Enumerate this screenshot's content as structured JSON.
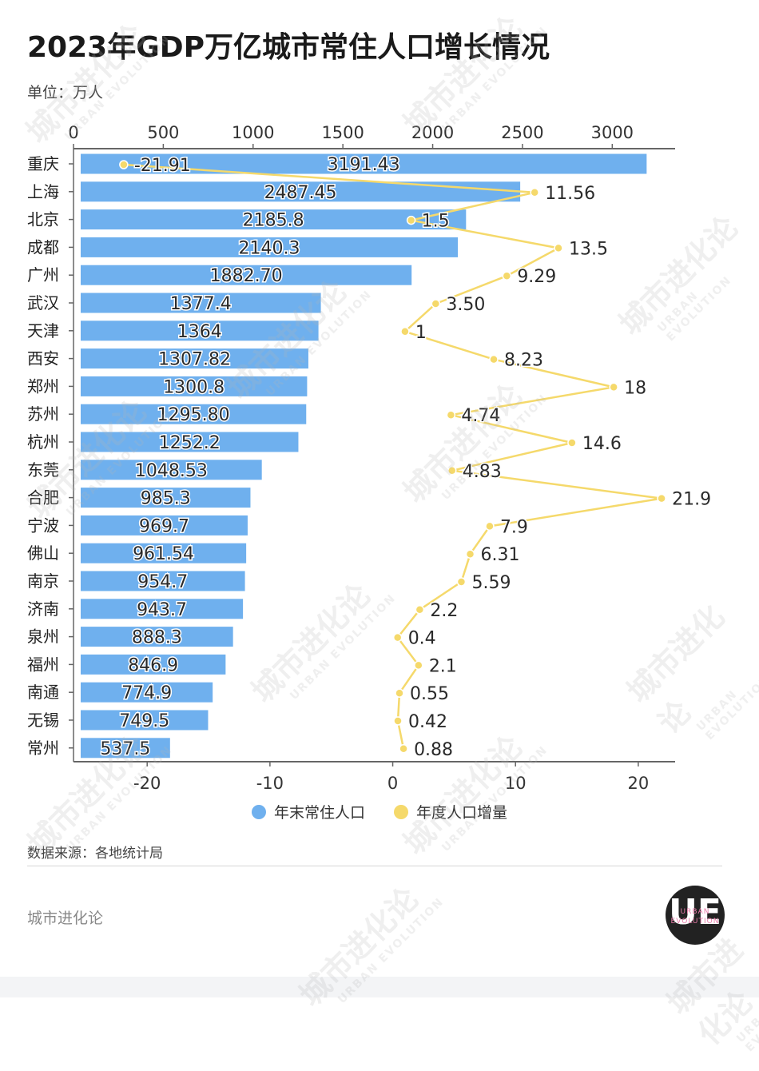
{
  "title": "2023年GDP万亿城市常住人口增长情况",
  "unit": "单位：万人",
  "source": "数据来源：各地统计局",
  "brand": "城市进化论",
  "logo": {
    "letters": "UE",
    "line1": "URBAN",
    "line2": "EVOLUTION"
  },
  "watermark": {
    "cn": "城市进化论",
    "en": "URBAN EVOLUTION"
  },
  "colors": {
    "bar": "#6fb0ee",
    "line": "#f5d96b",
    "axis": "#666666"
  },
  "legend": [
    {
      "label": "年末常住人口",
      "color": "#6fb0ee"
    },
    {
      "label": "年度人口增量",
      "color": "#f5d96b"
    }
  ],
  "chart_data": {
    "type": "bar",
    "categories": [
      "重庆",
      "上海",
      "北京",
      "成都",
      "广州",
      "武汉",
      "天津",
      "西安",
      "郑州",
      "苏州",
      "杭州",
      "东莞",
      "合肥",
      "宁波",
      "佛山",
      "南京",
      "济南",
      "泉州",
      "福州",
      "南通",
      "无锡",
      "常州"
    ],
    "series": [
      {
        "name": "年末常住人口",
        "type": "bar",
        "axis": "top",
        "values": [
          3191.43,
          2487.45,
          2185.8,
          2140.3,
          1882.7,
          1377.4,
          1364,
          1307.82,
          1300.8,
          1295.8,
          1252.2,
          1048.53,
          985.3,
          969.7,
          961.54,
          954.7,
          943.7,
          888.3,
          846.9,
          774.9,
          749.5,
          537.5
        ],
        "labels": [
          "3191.43",
          "2487.45",
          "2185.8",
          "2140.3",
          "1882.70",
          "1377.4",
          "1364",
          "1307.82",
          "1300.8",
          "1295.80",
          "1252.2",
          "1048.53",
          "985.3",
          "969.7",
          "961.54",
          "954.7",
          "943.7",
          "888.3",
          "846.9",
          "774.9",
          "749.5",
          "537.5"
        ]
      },
      {
        "name": "年度人口增量",
        "type": "line",
        "axis": "bottom",
        "values": [
          -21.91,
          11.56,
          1.5,
          13.5,
          9.29,
          3.5,
          1,
          8.23,
          18,
          4.74,
          14.6,
          4.83,
          21.9,
          7.9,
          6.31,
          5.59,
          2.2,
          0.4,
          2.1,
          0.55,
          0.42,
          0.88
        ],
        "labels": [
          "-21.91",
          "11.56",
          "1.5",
          "13.5",
          "9.29",
          "3.50",
          "1",
          "8.23",
          "18",
          "4.74",
          "14.6",
          "4.83",
          "21.9",
          "7.9",
          "6.31",
          "5.59",
          "2.2",
          "0.4",
          "2.1",
          "0.55",
          "0.42",
          "0.88"
        ]
      }
    ],
    "top_axis": {
      "min": 0,
      "max": 3350,
      "ticks": [
        0,
        500,
        1000,
        1500,
        2000,
        2500,
        3000
      ]
    },
    "bottom_axis": {
      "min": -26,
      "max": 23,
      "ticks": [
        -20,
        -10,
        0,
        10,
        20
      ]
    },
    "grid": false,
    "legend_position": "bottom"
  }
}
